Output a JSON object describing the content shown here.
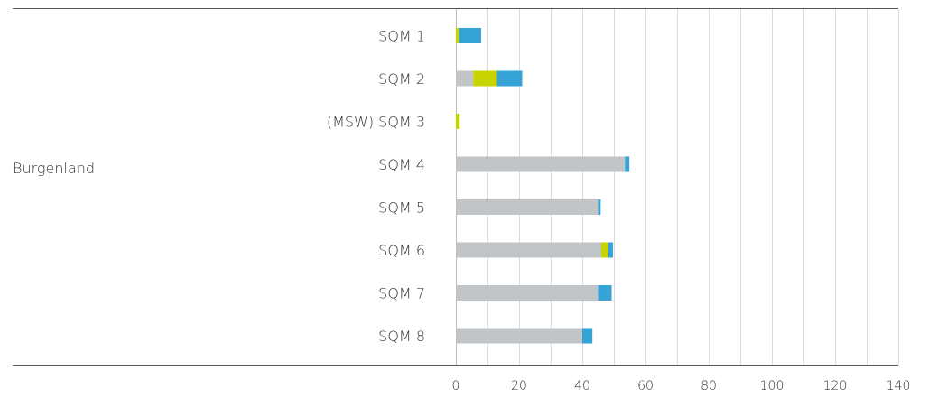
{
  "chart_data": {
    "type": "bar",
    "orientation": "horizontal",
    "stacked": true,
    "title": "",
    "xlabel": "",
    "ylabel": "",
    "group": "Burgenland",
    "categories": [
      "SQM 1",
      "SQM 2",
      "(MSW) SQM 3",
      "SQM 4",
      "SQM 5",
      "SQM 6",
      "SQM 7",
      "SQM 8"
    ],
    "series": [
      {
        "color": "#c2c5c8",
        "values": [
          0,
          5.5,
          0,
          53.5,
          45,
          46,
          45,
          40
        ]
      },
      {
        "color": "#c8d400",
        "values": [
          1,
          7.5,
          1.2,
          0,
          0,
          2.2,
          0,
          0
        ]
      },
      {
        "color": "#35a3d6",
        "values": [
          7,
          8,
          0,
          1.4,
          0.8,
          1.5,
          4.3,
          3.2
        ]
      }
    ],
    "xlim": [
      0,
      140
    ],
    "xticks": [
      "0",
      "20",
      "40",
      "60",
      "80",
      "100",
      "120",
      "140"
    ],
    "grid": true,
    "legend": "none"
  }
}
